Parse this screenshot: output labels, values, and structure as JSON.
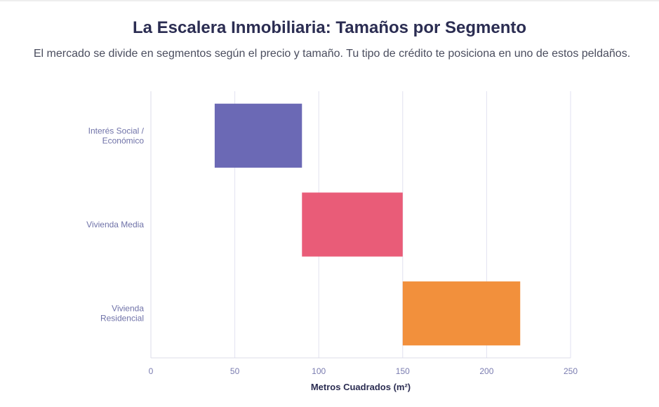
{
  "header": {
    "title": "La Escalera Inmobiliaria: Tamaños por Segmento",
    "subtitle": "El mercado se divide en segmentos según el precio y tamaño. Tu tipo de crédito te posiciona en uno de estos peldaños."
  },
  "chart_data": {
    "type": "bar",
    "orientation": "horizontal",
    "style": "floating-range",
    "title": "La Escalera Inmobiliaria: Tamaños por Segmento",
    "subtitle": "El mercado se divide en segmentos según el precio y tamaño. Tu tipo de crédito te posiciona en uno de estos peldaños.",
    "xlabel": "Metros Cuadrados (m²)",
    "ylabel": "",
    "xlim": [
      0,
      250
    ],
    "x_ticks": [
      "0",
      "50",
      "100",
      "150",
      "200",
      "250"
    ],
    "grid": "vertical",
    "legend": "none",
    "categories": [
      [
        "Interés Social /",
        "Económico"
      ],
      [
        "Vivienda Media"
      ],
      [
        "Vivienda",
        "Residencial"
      ]
    ],
    "ranges": [
      [
        38,
        90
      ],
      [
        90,
        150
      ],
      [
        150,
        220
      ]
    ],
    "colors": [
      "#6b69b5",
      "#e95c78",
      "#f2903c"
    ],
    "grid_color": "#e2e2f0",
    "axis_color": "#dcdcea"
  }
}
